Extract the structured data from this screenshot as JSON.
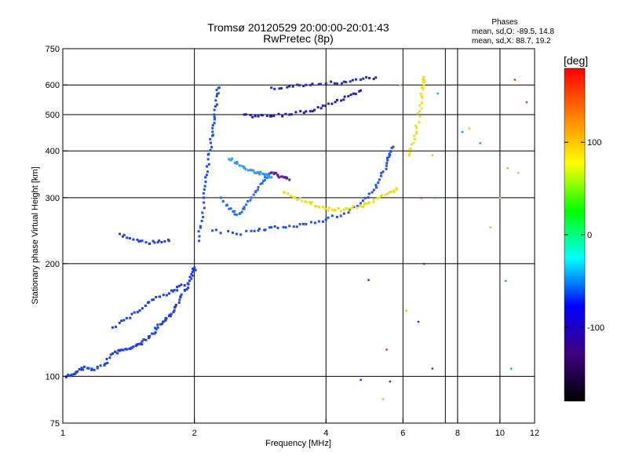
{
  "chart_data": {
    "type": "scatter",
    "title": "Tromsø 20120529 20:00:00-20:01:43",
    "subtitle": "RwPretec (8p)",
    "xlabel": "Frequency [MHz]",
    "ylabel": "Stationary phase Virtual Height [km]",
    "x_scale": "log",
    "y_scale": "log",
    "xlim": [
      1,
      12
    ],
    "ylim": [
      75,
      750
    ],
    "x_ticks": [
      1,
      2,
      4,
      6,
      8,
      10,
      12
    ],
    "y_ticks": [
      75,
      100,
      200,
      300,
      400,
      500,
      600,
      750
    ],
    "x_gridlines": [
      2,
      4,
      6,
      7.5,
      8,
      10
    ],
    "y_gridlines": [
      100,
      200,
      300,
      400,
      500,
      600
    ],
    "grid": true,
    "phases_box": {
      "title": "Phases",
      "line1": "mean, sd,O: -89.5, 14.8",
      "line2": "mean, sd,X:  88.7, 19.2"
    },
    "colorbar": {
      "label": "[deg]",
      "range": [
        -180,
        180
      ],
      "ticks": [
        100,
        0,
        -100
      ],
      "colors": [
        "#ff0000",
        "#ff8000",
        "#ffff00",
        "#00ff00",
        "#00ffff",
        "#0000ff",
        "#400080",
        "#000000"
      ]
    },
    "series": [
      {
        "color": "#2040e0",
        "points": [
          [
            1.02,
            100
          ],
          [
            1.05,
            101
          ],
          [
            1.08,
            103
          ],
          [
            1.12,
            106
          ],
          [
            1.18,
            104
          ],
          [
            1.25,
            108
          ],
          [
            1.3,
            115
          ],
          [
            1.35,
            117
          ],
          [
            1.4,
            118
          ],
          [
            1.45,
            120
          ],
          [
            1.5,
            122
          ],
          [
            1.55,
            125
          ],
          [
            1.6,
            130
          ],
          [
            1.65,
            135
          ],
          [
            1.7,
            140
          ],
          [
            1.75,
            145
          ],
          [
            1.8,
            150
          ],
          [
            1.85,
            160
          ],
          [
            1.9,
            170
          ],
          [
            1.95,
            180
          ],
          [
            1.98,
            190
          ],
          [
            2.0,
            195
          ]
        ]
      },
      {
        "color": "#2040e0",
        "points": [
          [
            1.3,
            135
          ],
          [
            1.4,
            143
          ],
          [
            1.5,
            150
          ],
          [
            1.6,
            160
          ],
          [
            1.7,
            165
          ],
          [
            1.8,
            170
          ],
          [
            1.9,
            175
          ]
        ]
      },
      {
        "color": "#2040e0",
        "points": [
          [
            1.35,
            240
          ],
          [
            1.45,
            232
          ],
          [
            1.55,
            228
          ],
          [
            1.65,
            228
          ],
          [
            1.75,
            230
          ]
        ]
      },
      {
        "color": "#1e50ee",
        "points": [
          [
            2.05,
            230
          ],
          [
            2.08,
            260
          ],
          [
            2.1,
            300
          ],
          [
            2.12,
            340
          ],
          [
            2.15,
            380
          ],
          [
            2.18,
            420
          ],
          [
            2.2,
            460
          ],
          [
            2.22,
            500
          ],
          [
            2.25,
            560
          ],
          [
            2.28,
            590
          ]
        ]
      },
      {
        "color": "#2a6cf0",
        "points": [
          [
            2.3,
            300
          ],
          [
            2.4,
            280
          ],
          [
            2.5,
            270
          ],
          [
            2.6,
            280
          ],
          [
            2.7,
            300
          ],
          [
            2.8,
            320
          ],
          [
            2.9,
            340
          ],
          [
            3.0,
            350
          ]
        ]
      },
      {
        "color": "#3399ee",
        "points": [
          [
            2.4,
            380
          ],
          [
            2.5,
            370
          ],
          [
            2.6,
            360
          ],
          [
            2.7,
            355
          ],
          [
            2.8,
            350
          ],
          [
            2.9,
            345
          ],
          [
            3.0,
            340
          ]
        ]
      },
      {
        "color": "#2050e8",
        "points": [
          [
            2.2,
            245
          ],
          [
            2.5,
            240
          ],
          [
            2.8,
            245
          ],
          [
            3.0,
            250
          ],
          [
            3.3,
            252
          ],
          [
            3.6,
            255
          ],
          [
            4.0,
            262
          ],
          [
            4.4,
            272
          ],
          [
            4.8,
            290
          ],
          [
            5.1,
            310
          ],
          [
            5.3,
            335
          ],
          [
            5.5,
            365
          ],
          [
            5.6,
            390
          ],
          [
            5.7,
            410
          ]
        ]
      },
      {
        "color": "#e8e020",
        "points": [
          [
            3.2,
            310
          ],
          [
            3.4,
            300
          ],
          [
            3.6,
            292
          ],
          [
            3.8,
            285
          ],
          [
            4.0,
            280
          ],
          [
            4.2,
            278
          ],
          [
            4.5,
            280
          ],
          [
            4.8,
            285
          ],
          [
            5.0,
            290
          ],
          [
            5.3,
            300
          ],
          [
            5.6,
            310
          ],
          [
            5.8,
            318
          ]
        ]
      },
      {
        "color": "#e8e020",
        "points": [
          [
            6.2,
            390
          ],
          [
            6.35,
            420
          ],
          [
            6.45,
            460
          ],
          [
            6.55,
            510
          ],
          [
            6.62,
            560
          ],
          [
            6.68,
            610
          ],
          [
            6.7,
            630
          ]
        ]
      },
      {
        "color": "#2020b0",
        "points": [
          [
            2.6,
            500
          ],
          [
            2.8,
            495
          ],
          [
            3.0,
            495
          ],
          [
            3.3,
            500
          ],
          [
            3.6,
            510
          ],
          [
            3.9,
            520
          ],
          [
            4.2,
            540
          ],
          [
            4.5,
            560
          ],
          [
            4.8,
            580
          ]
        ]
      },
      {
        "color": "#2030c0",
        "points": [
          [
            3.0,
            590
          ],
          [
            3.3,
            595
          ],
          [
            3.6,
            600
          ],
          [
            4.0,
            605
          ],
          [
            4.4,
            612
          ],
          [
            4.8,
            620
          ],
          [
            5.2,
            628
          ]
        ]
      },
      {
        "color": "#6020a0",
        "points": [
          [
            3.0,
            350
          ],
          [
            3.1,
            345
          ],
          [
            3.2,
            340
          ],
          [
            3.3,
            335
          ]
        ]
      }
    ],
    "scatter_noise": [
      {
        "color": "#e8c020",
        "points": [
          [
            5.9,
            600
          ],
          [
            6.1,
            150
          ],
          [
            7.0,
            390
          ],
          [
            8.5,
            460
          ],
          [
            9.5,
            250
          ],
          [
            10.0,
            300
          ],
          [
            10.4,
            360
          ],
          [
            11.0,
            350
          ],
          [
            5.4,
            87
          ]
        ]
      },
      {
        "color": "#20a0e0",
        "points": [
          [
            7.2,
            570
          ],
          [
            8.2,
            450
          ],
          [
            9.0,
            420
          ],
          [
            10.3,
            180
          ],
          [
            10.6,
            105
          ],
          [
            7.1,
            300
          ]
        ]
      },
      {
        "color": "#2040e0",
        "points": [
          [
            6.5,
            140
          ],
          [
            7.0,
            105
          ],
          [
            4.8,
            98
          ],
          [
            5.0,
            181
          ],
          [
            5.6,
            97
          ],
          [
            6.7,
            200
          ]
        ]
      },
      {
        "color": "#e04020",
        "points": [
          [
            6.6,
            300
          ],
          [
            5.5,
            118
          ],
          [
            11.5,
            540
          ],
          [
            10.8,
            620
          ]
        ]
      }
    ]
  }
}
